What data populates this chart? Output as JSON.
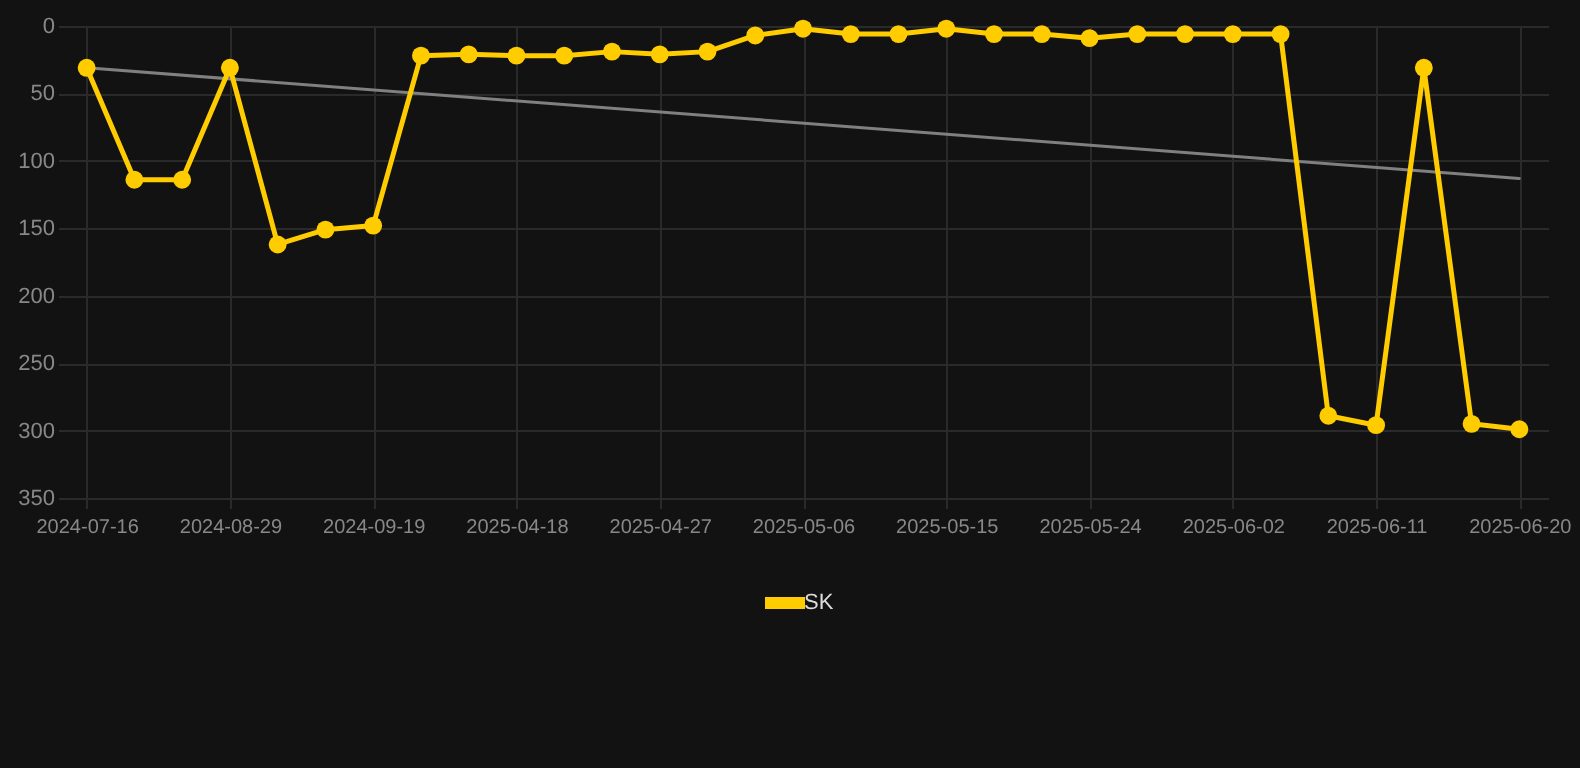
{
  "chart_data": {
    "type": "line",
    "categories": [
      "2024-07-16",
      null,
      null,
      "2024-08-29",
      null,
      null,
      "2024-09-19",
      null,
      null,
      "2025-04-18",
      null,
      null,
      "2025-04-27",
      null,
      null,
      "2025-05-06",
      null,
      null,
      "2025-05-15",
      null,
      null,
      "2025-05-24",
      null,
      null,
      "2025-06-02",
      null,
      null,
      "2025-06-11",
      null,
      null,
      "2025-06-20"
    ],
    "series": [
      {
        "name": "SK",
        "color": "#ffcc00",
        "marker": "circle",
        "values": [
          31,
          114,
          114,
          31,
          162,
          151,
          148,
          22,
          21,
          22,
          22,
          19,
          21,
          19,
          7,
          2,
          6,
          6,
          2,
          6,
          6,
          9,
          6,
          6,
          6,
          6,
          289,
          296,
          31,
          295,
          299
        ]
      },
      {
        "type": "line",
        "color": "#808080",
        "marker": "none",
        "values": [
          31,
          null,
          null,
          null,
          null,
          null,
          null,
          null,
          null,
          null,
          null,
          null,
          null,
          null,
          null,
          null,
          null,
          null,
          null,
          null,
          null,
          null,
          null,
          null,
          null,
          null,
          null,
          null,
          null,
          null,
          113
        ]
      }
    ],
    "ylim": [
      350,
      0
    ],
    "yticks": [
      0,
      50,
      100,
      150,
      200,
      250,
      300,
      350
    ],
    "grid": true,
    "legend": "bottom"
  }
}
